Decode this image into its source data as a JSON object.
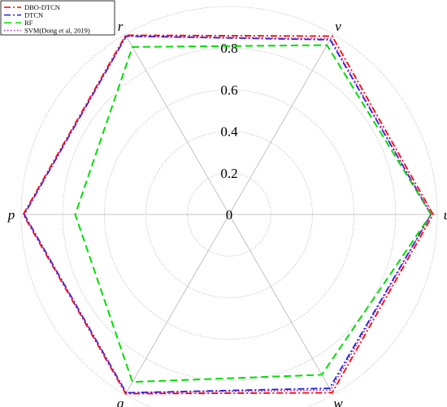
{
  "chart_data": {
    "type": "radar",
    "axes": [
      "u",
      "v",
      "r",
      "p",
      "q",
      "w"
    ],
    "radial_ticks": [
      "0",
      "0.2",
      "0.4",
      "0.6",
      "0.8"
    ],
    "radial_tick_values": [
      0,
      0.2,
      0.4,
      0.6,
      0.8
    ],
    "rlim": [
      0,
      1.0
    ],
    "grid": true,
    "legend_position": "top-left",
    "series": [
      {
        "name": "DBO-DTCN",
        "values": [
          0.98,
          0.99,
          0.995,
          0.99,
          0.995,
          0.99
        ],
        "color": "#ff0000",
        "dash": "dash-dot"
      },
      {
        "name": "DTCN",
        "values": [
          0.97,
          0.97,
          0.99,
          0.985,
          0.99,
          0.965
        ],
        "color": "#1f1fd6",
        "dash": "dash-dot"
      },
      {
        "name": "RF",
        "values": [
          0.97,
          0.94,
          0.93,
          0.74,
          0.93,
          0.89
        ],
        "color": "#00dd00",
        "dash": "dashed"
      },
      {
        "name": "SVM(Dong et al, 2019)",
        "values": [
          0.97,
          0.975,
          0.99,
          0.985,
          0.99,
          0.975
        ],
        "color": "#a020c0",
        "dash": "dotted"
      }
    ]
  }
}
